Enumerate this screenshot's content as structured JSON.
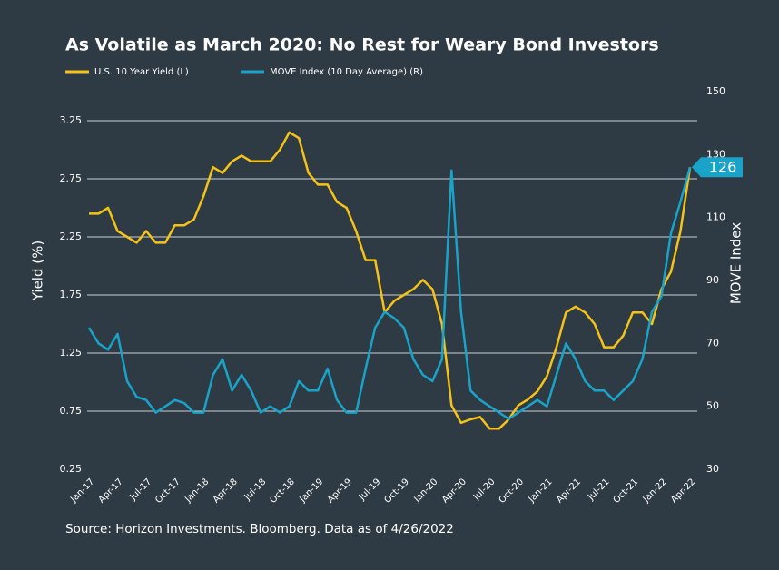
{
  "chart_data": {
    "type": "line",
    "title": "As Volatile as March 2020: No Rest for Weary Bond Investors",
    "source": "Source: Horizon Investments. Bloomberg. Data as of 4/26/2022",
    "ylabel": "Yield (%)",
    "y2label": "MOVE Index",
    "categories": [
      "Jan-17",
      null,
      null,
      "Apr-17",
      null,
      null,
      "Jul-17",
      null,
      null,
      "Oct-17",
      null,
      null,
      "Jan-18",
      null,
      null,
      "Apr-18",
      null,
      null,
      "Jul-18",
      null,
      null,
      "Oct-18",
      null,
      null,
      "Jan-19",
      null,
      null,
      "Apr-19",
      null,
      null,
      "Jul-19",
      null,
      null,
      "Oct-19",
      null,
      null,
      "Jan-20",
      null,
      null,
      "Apr-20",
      null,
      null,
      "Jul-20",
      null,
      null,
      "Oct-20",
      null,
      null,
      "Jan-21",
      null,
      null,
      "Apr-21",
      null,
      null,
      "Jul-21",
      null,
      null,
      "Oct-21",
      null,
      null,
      "Jan-22",
      null,
      null,
      "Apr-22"
    ],
    "series": [
      {
        "name": "U.S. 10 Year Yield (L)",
        "color": "#f5c318",
        "axis": "y",
        "values": [
          2.45,
          2.45,
          2.5,
          2.3,
          2.25,
          2.2,
          2.3,
          2.2,
          2.2,
          2.35,
          2.35,
          2.4,
          2.6,
          2.85,
          2.8,
          2.9,
          2.95,
          2.9,
          2.9,
          2.9,
          3.0,
          3.15,
          3.1,
          2.8,
          2.7,
          2.7,
          2.55,
          2.5,
          2.3,
          2.05,
          2.05,
          1.6,
          1.7,
          1.75,
          1.8,
          1.88,
          1.8,
          1.5,
          0.8,
          0.65,
          0.68,
          0.7,
          0.6,
          0.6,
          0.68,
          0.8,
          0.85,
          0.92,
          1.05,
          1.3,
          1.6,
          1.65,
          1.6,
          1.5,
          1.3,
          1.3,
          1.4,
          1.6,
          1.6,
          1.5,
          1.8,
          1.95,
          2.3,
          2.85
        ]
      },
      {
        "name": "MOVE Index (10 Day Average) (R)",
        "color": "#1aa3c8",
        "axis": "y2",
        "values": [
          75,
          70,
          68,
          73,
          58,
          53,
          52,
          48,
          50,
          52,
          51,
          48,
          48,
          60,
          65,
          55,
          60,
          55,
          48,
          50,
          48,
          50,
          58,
          55,
          55,
          62,
          52,
          48,
          48,
          62,
          75,
          80,
          78,
          75,
          65,
          60,
          58,
          65,
          125,
          80,
          55,
          52,
          50,
          48,
          46,
          48,
          50,
          52,
          50,
          60,
          70,
          65,
          58,
          55,
          55,
          52,
          55,
          58,
          65,
          80,
          85,
          105,
          115,
          126
        ]
      }
    ],
    "annotation": "126",
    "ylim": [
      0.25,
      3.5
    ],
    "yticks": [
      0.25,
      0.75,
      1.25,
      1.75,
      2.25,
      2.75,
      3.25
    ],
    "y2lim": [
      30,
      150
    ],
    "y2ticks": [
      30,
      50,
      70,
      90,
      110,
      130,
      150
    ],
    "grid": true
  }
}
